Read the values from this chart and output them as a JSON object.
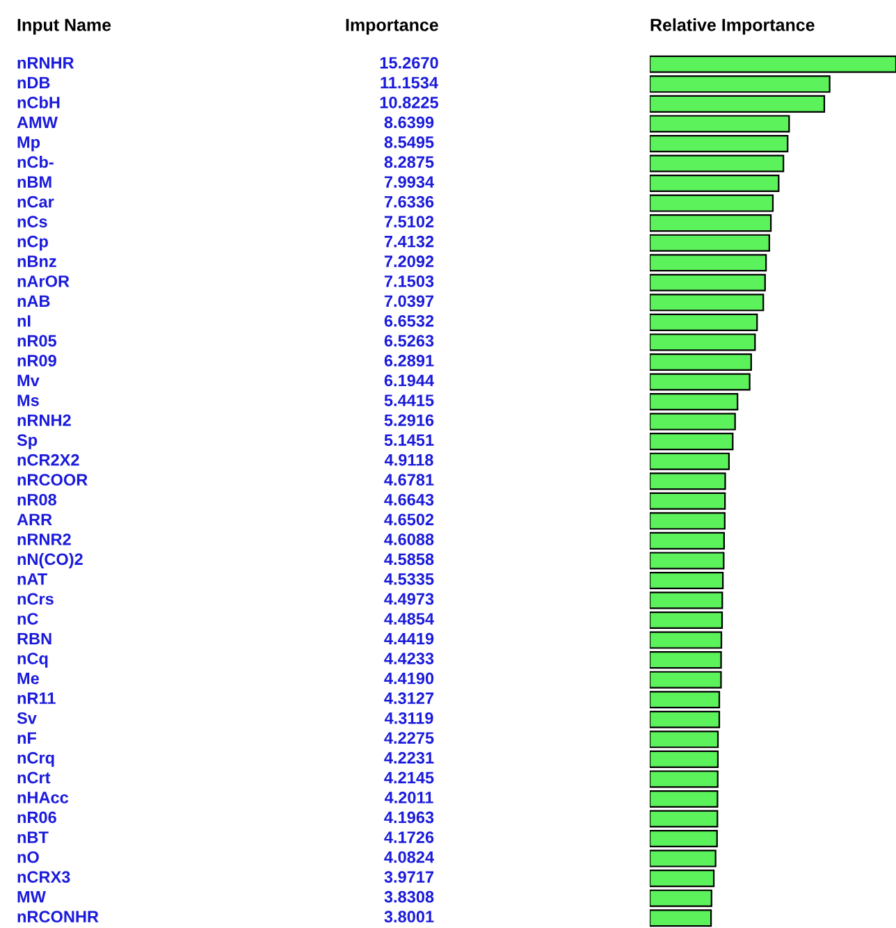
{
  "chart_data": {
    "type": "bar",
    "orientation": "horizontal",
    "ylabel": "Input Name",
    "xlabel": "Relative Importance",
    "annotations": [
      "Importance"
    ],
    "categories": [
      "nRNHR",
      "nDB",
      "nCbH",
      "AMW",
      "Mp",
      "nCb-",
      "nBM",
      "nCar",
      "nCs",
      "nCp",
      "nBnz",
      "nArOR",
      "nAB",
      "nI",
      "nR05",
      "nR09",
      "Mv",
      "Ms",
      "nRNH2",
      "Sp",
      "nCR2X2",
      "nRCOOR",
      "nR08",
      "ARR",
      "nRNR2",
      "nN(CO)2",
      "nAT",
      "nCrs",
      "nC",
      "RBN",
      "nCq",
      "Me",
      "nR11",
      "Sv",
      "nF",
      "nCrq",
      "nCrt",
      "nHAcc",
      "nR06",
      "nBT",
      "nO",
      "nCRX3",
      "MW",
      "nRCONHR"
    ],
    "values": [
      15.267,
      11.1534,
      10.8225,
      8.6399,
      8.5495,
      8.2875,
      7.9934,
      7.6336,
      7.5102,
      7.4132,
      7.2092,
      7.1503,
      7.0397,
      6.6532,
      6.5263,
      6.2891,
      6.1944,
      5.4415,
      5.2916,
      5.1451,
      4.9118,
      4.6781,
      4.6643,
      4.6502,
      4.6088,
      4.5858,
      4.5335,
      4.4973,
      4.4854,
      4.4419,
      4.4233,
      4.419,
      4.3127,
      4.3119,
      4.2275,
      4.2231,
      4.2145,
      4.2011,
      4.1963,
      4.1726,
      4.0824,
      3.9717,
      3.8308,
      3.8001
    ],
    "value_labels": [
      "15.2670",
      "11.1534",
      "10.8225",
      "8.6399",
      "8.5495",
      "8.2875",
      "7.9934",
      "7.6336",
      "7.5102",
      "7.4132",
      "7.2092",
      "7.1503",
      "7.0397",
      "6.6532",
      "6.5263",
      "6.2891",
      "6.1944",
      "5.4415",
      "5.2916",
      "5.1451",
      "4.9118",
      "4.6781",
      "4.6643",
      "4.6502",
      "4.6088",
      "4.5858",
      "4.5335",
      "4.4973",
      "4.4854",
      "4.4419",
      "4.4233",
      "4.4190",
      "4.3127",
      "4.3119",
      "4.2275",
      "4.2231",
      "4.2145",
      "4.2011",
      "4.1963",
      "4.1726",
      "4.0824",
      "3.9717",
      "3.8308",
      "3.8001"
    ],
    "color": "#5cf25c",
    "xlim": [
      0,
      15.267
    ]
  }
}
